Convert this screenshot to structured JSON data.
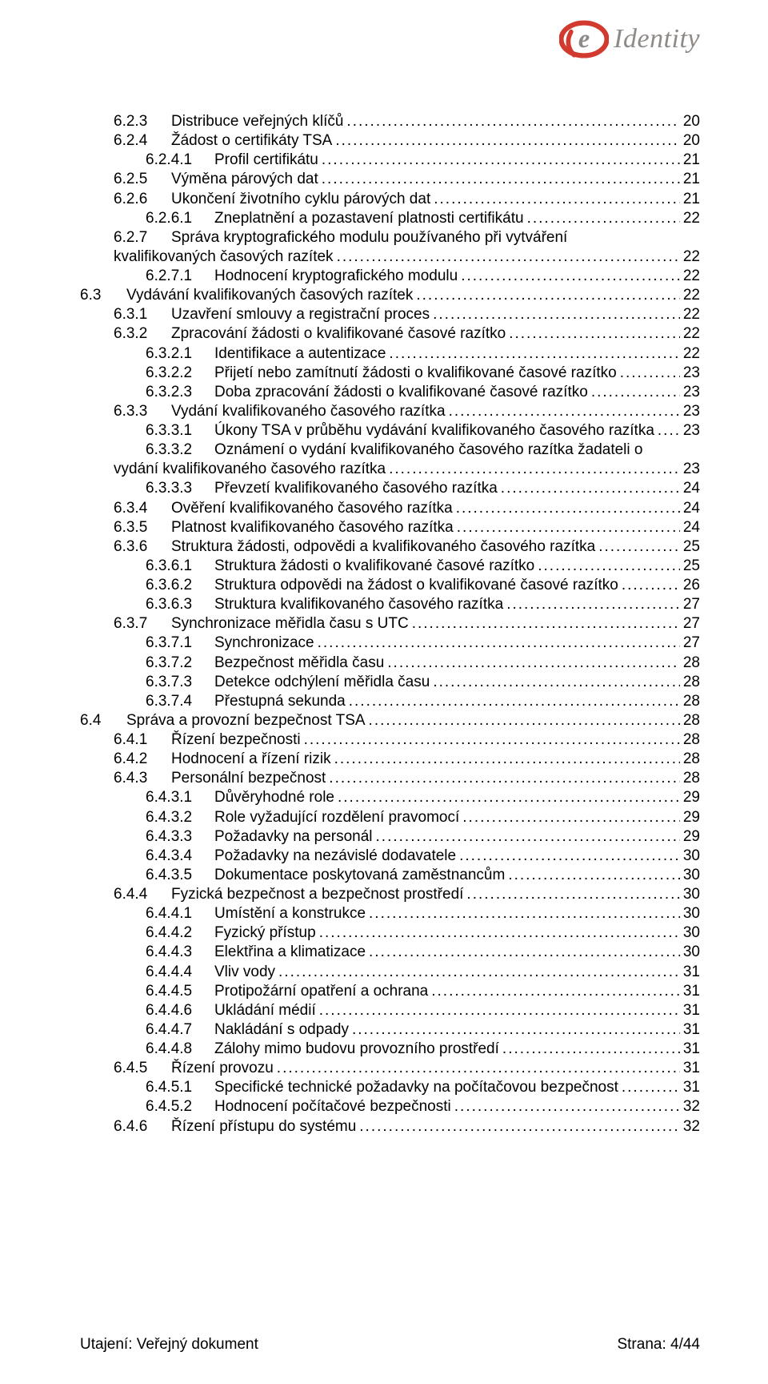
{
  "logo": {
    "text": "Identity",
    "swirl_color": "#d33a2f",
    "e_color": "#8e8a87"
  },
  "toc": [
    {
      "indent": 1,
      "num": "6.2.3",
      "title": "Distribuce veřejných klíčů",
      "page": "20"
    },
    {
      "indent": 1,
      "num": "6.2.4",
      "title": "Žádost o certifikáty TSA",
      "page": "20"
    },
    {
      "indent": 2,
      "num": "6.2.4.1",
      "title": "Profil certifikátu",
      "page": "21"
    },
    {
      "indent": 1,
      "num": "6.2.5",
      "title": "Výměna párových dat",
      "page": "21"
    },
    {
      "indent": 1,
      "num": "6.2.6",
      "title": "Ukončení životního cyklu párových dat",
      "page": "21"
    },
    {
      "indent": 2,
      "num": "6.2.6.1",
      "title": "Zneplatnění a pozastavení platnosti certifikátu",
      "page": "22"
    },
    {
      "indent": 1,
      "num": "6.2.7",
      "title": "Správa kryptografického modulu používaného při vytváření kvalifikovaných časových razítek",
      "page": "22",
      "wrap": true
    },
    {
      "indent": 2,
      "num": "6.2.7.1",
      "title": "Hodnocení kryptografického modulu",
      "page": "22"
    },
    {
      "indent": 0,
      "num": "6.3",
      "title": "Vydávání kvalifikovaných časových razítek",
      "page": "22"
    },
    {
      "indent": 1,
      "num": "6.3.1",
      "title": "Uzavření smlouvy a registrační proces",
      "page": "22"
    },
    {
      "indent": 1,
      "num": "6.3.2",
      "title": "Zpracování žádosti o kvalifikované časové razítko",
      "page": "22"
    },
    {
      "indent": 2,
      "num": "6.3.2.1",
      "title": "Identifikace a autentizace",
      "page": "22"
    },
    {
      "indent": 2,
      "num": "6.3.2.2",
      "title": "Přijetí nebo zamítnutí žádosti o kvalifikované časové razítko",
      "page": "23"
    },
    {
      "indent": 2,
      "num": "6.3.2.3",
      "title": "Doba zpracování žádosti o kvalifikované časové razítko",
      "page": "23"
    },
    {
      "indent": 1,
      "num": "6.3.3",
      "title": "Vydání kvalifikovaného časového razítka",
      "page": "23"
    },
    {
      "indent": 2,
      "num": "6.3.3.1",
      "title": "Úkony TSA v průběhu vydávání kvalifikovaného časového razítka",
      "page": "23"
    },
    {
      "indent": 2,
      "num": "6.3.3.2",
      "title": "Oznámení o vydání kvalifikovaného časového razítka žadateli o vydání kvalifikovaného časového razítka",
      "page": "23",
      "wrap": true,
      "wrapIndent": 1
    },
    {
      "indent": 2,
      "num": "6.3.3.3",
      "title": "Převzetí kvalifikovaného časového razítka",
      "page": "24"
    },
    {
      "indent": 1,
      "num": "6.3.4",
      "title": "Ověření kvalifikovaného časového razítka",
      "page": "24"
    },
    {
      "indent": 1,
      "num": "6.3.5",
      "title": "Platnost kvalifikovaného časového razítka",
      "page": "24"
    },
    {
      "indent": 1,
      "num": "6.3.6",
      "title": "Struktura žádosti, odpovědi a kvalifikovaného časového razítka",
      "page": "25"
    },
    {
      "indent": 2,
      "num": "6.3.6.1",
      "title": "Struktura žádosti o kvalifikované časové razítko",
      "page": "25"
    },
    {
      "indent": 2,
      "num": "6.3.6.2",
      "title": "Struktura odpovědi na žádost o kvalifikované časové razítko",
      "page": "26"
    },
    {
      "indent": 2,
      "num": "6.3.6.3",
      "title": "Struktura kvalifikovaného časového razítka",
      "page": "27"
    },
    {
      "indent": 1,
      "num": "6.3.7",
      "title": "Synchronizace měřidla času s UTC",
      "page": "27"
    },
    {
      "indent": 2,
      "num": "6.3.7.1",
      "title": "Synchronizace",
      "page": "27"
    },
    {
      "indent": 2,
      "num": "6.3.7.2",
      "title": "Bezpečnost měřidla času",
      "page": "28"
    },
    {
      "indent": 2,
      "num": "6.3.7.3",
      "title": "Detekce odchýlení měřidla času",
      "page": "28"
    },
    {
      "indent": 2,
      "num": "6.3.7.4",
      "title": "Přestupná sekunda",
      "page": "28"
    },
    {
      "indent": 0,
      "num": "6.4",
      "title": "Správa a provozní bezpečnost TSA",
      "page": "28"
    },
    {
      "indent": 1,
      "num": "6.4.1",
      "title": "Řízení bezpečnosti",
      "page": "28"
    },
    {
      "indent": 1,
      "num": "6.4.2",
      "title": "Hodnocení a řízení rizik",
      "page": "28"
    },
    {
      "indent": 1,
      "num": "6.4.3",
      "title": "Personální bezpečnost",
      "page": "28"
    },
    {
      "indent": 2,
      "num": "6.4.3.1",
      "title": "Důvěryhodné role",
      "page": "29"
    },
    {
      "indent": 2,
      "num": "6.4.3.2",
      "title": "Role vyžadující rozdělení pravomocí",
      "page": "29"
    },
    {
      "indent": 2,
      "num": "6.4.3.3",
      "title": "Požadavky na personál",
      "page": "29"
    },
    {
      "indent": 2,
      "num": "6.4.3.4",
      "title": "Požadavky na nezávislé dodavatele",
      "page": "30"
    },
    {
      "indent": 2,
      "num": "6.4.3.5",
      "title": "Dokumentace poskytovaná zaměstnancům",
      "page": "30"
    },
    {
      "indent": 1,
      "num": "6.4.4",
      "title": "Fyzická bezpečnost a bezpečnost prostředí",
      "page": "30"
    },
    {
      "indent": 2,
      "num": "6.4.4.1",
      "title": "Umístění a konstrukce",
      "page": "30"
    },
    {
      "indent": 2,
      "num": "6.4.4.2",
      "title": "Fyzický přístup",
      "page": "30"
    },
    {
      "indent": 2,
      "num": "6.4.4.3",
      "title": "Elektřina a klimatizace",
      "page": "30"
    },
    {
      "indent": 2,
      "num": "6.4.4.4",
      "title": "Vliv vody",
      "page": "31"
    },
    {
      "indent": 2,
      "num": "6.4.4.5",
      "title": "Protipožární opatření a ochrana",
      "page": "31"
    },
    {
      "indent": 2,
      "num": "6.4.4.6",
      "title": "Ukládání médií",
      "page": "31"
    },
    {
      "indent": 2,
      "num": "6.4.4.7",
      "title": "Nakládání s odpady",
      "page": "31"
    },
    {
      "indent": 2,
      "num": "6.4.4.8",
      "title": "Zálohy mimo budovu provozního prostředí",
      "page": "31"
    },
    {
      "indent": 1,
      "num": "6.4.5",
      "title": "Řízení provozu",
      "page": "31"
    },
    {
      "indent": 2,
      "num": "6.4.5.1",
      "title": "Specifické technické požadavky na počítačovou bezpečnost",
      "page": "31"
    },
    {
      "indent": 2,
      "num": "6.4.5.2",
      "title": "Hodnocení počítačové bezpečnosti",
      "page": "32"
    },
    {
      "indent": 1,
      "num": "6.4.6",
      "title": "Řízení přístupu do systému",
      "page": "32"
    }
  ],
  "footer": {
    "left": "Utajení: Veřejný dokument",
    "right": "Strana: 4/44"
  }
}
